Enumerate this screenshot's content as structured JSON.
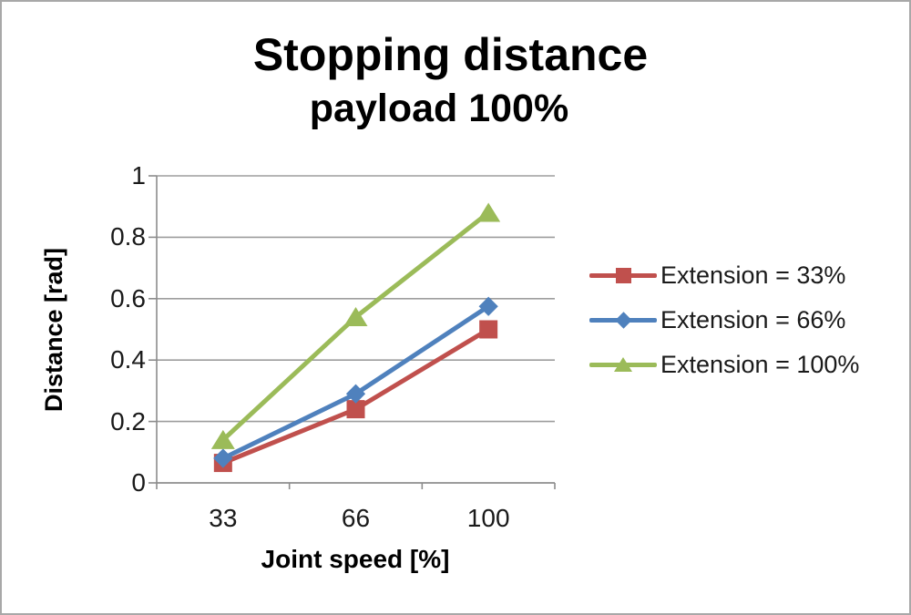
{
  "page": {
    "background": "#ffffff",
    "border_color": "#a8a8a8"
  },
  "chart_data": {
    "type": "line",
    "title": "Stopping distance",
    "subtitle": "payload 100%",
    "xlabel": "Joint speed [%]",
    "ylabel": "Distance [rad]",
    "categories": [
      "33",
      "66",
      "100"
    ],
    "x_values": [
      33,
      66,
      100
    ],
    "ylim": [
      0,
      1
    ],
    "yticks": [
      "1",
      "0.8",
      "0.6",
      "0.4",
      "0.2",
      "0"
    ],
    "ytick_values": [
      1,
      0.8,
      0.6,
      0.4,
      0.2,
      0
    ],
    "grid": true,
    "legend_position": "right",
    "axis_color": "#8c8c8c",
    "gridline_color": "#9d9d9d",
    "series": [
      {
        "name": "Extension = 33%",
        "color": "#c0504d",
        "marker": "square",
        "values": [
          0.065,
          0.24,
          0.5
        ]
      },
      {
        "name": "Extension = 66%",
        "color": "#4f81bd",
        "marker": "diamond",
        "values": [
          0.08,
          0.29,
          0.575
        ]
      },
      {
        "name": "Extension = 100%",
        "color": "#9bbb59",
        "marker": "triangle",
        "values": [
          0.14,
          0.54,
          0.88
        ]
      }
    ]
  }
}
